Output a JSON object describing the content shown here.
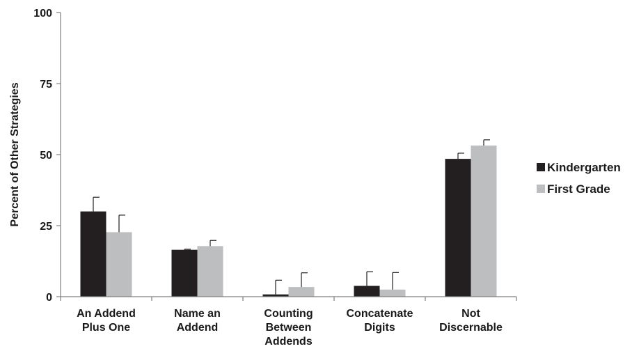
{
  "chart_data": {
    "type": "bar",
    "title": "",
    "xlabel": "",
    "ylabel": "Percent of Other Strategies",
    "ylim": [
      0,
      100
    ],
    "yticks": [
      0,
      25,
      50,
      75,
      100
    ],
    "grid": false,
    "legend_position": "right",
    "categories": [
      [
        "An Addend",
        "Plus One"
      ],
      [
        "Name an",
        "Addend"
      ],
      [
        "Counting",
        "Between",
        "Addends"
      ],
      [
        "Concatenate",
        "Digits"
      ],
      [
        "Not",
        "Discernable"
      ]
    ],
    "series": [
      {
        "name": "Kindergarten",
        "color": "#231f20",
        "values": [
          30,
          16.5,
          0.8,
          3.8,
          48.5
        ],
        "error": [
          5.0,
          0.2,
          5.0,
          5.0,
          2.0
        ]
      },
      {
        "name": "First Grade",
        "color": "#bcbec0",
        "values": [
          22.7,
          17.8,
          3.4,
          2.5,
          53.2
        ],
        "error": [
          6.0,
          2.0,
          5.0,
          6.0,
          2.0
        ]
      }
    ]
  }
}
